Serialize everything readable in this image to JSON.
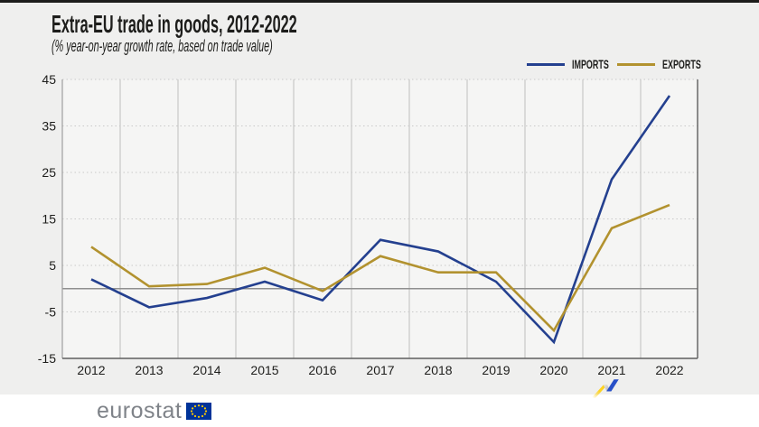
{
  "chart_data": {
    "type": "line",
    "title": "Extra-EU trade in goods, 2012-2022",
    "subtitle": "(% year-on-year growth rate, based on trade value)",
    "x": [
      2012,
      2013,
      2014,
      2015,
      2016,
      2017,
      2018,
      2019,
      2020,
      2021,
      2022
    ],
    "series": [
      {
        "name": "IMPORTS",
        "color": "#24408f",
        "values": [
          2,
          -4,
          -2,
          1.5,
          -2.5,
          10.5,
          8,
          1.5,
          -11.5,
          23.5,
          41.5
        ]
      },
      {
        "name": "EXPORTS",
        "color": "#b2922f",
        "values": [
          9,
          0.5,
          1,
          4.5,
          -0.5,
          7,
          3.5,
          3.5,
          -9,
          13,
          18
        ]
      }
    ],
    "xlabel": "",
    "ylabel": "",
    "ylim": [
      -15,
      45
    ],
    "yticks": [
      45,
      35,
      25,
      15,
      5,
      -5,
      -15
    ],
    "grid": true,
    "zero_line": true,
    "legend_position": "top-right"
  },
  "footer": {
    "brand": "eurostat",
    "flag_icon": "eu-flag-icon",
    "ribbon_icon": "eurostat-ribbon-icon"
  },
  "colors": {
    "imports_line": "#24408f",
    "exports_line": "#b2922f",
    "ribbon_yellow": "#fdd21f",
    "ribbon_blue": "#2850c8",
    "flag_blue": "#003399",
    "flag_stars": "#ffcc00",
    "top_border": "#1d1d1b"
  }
}
